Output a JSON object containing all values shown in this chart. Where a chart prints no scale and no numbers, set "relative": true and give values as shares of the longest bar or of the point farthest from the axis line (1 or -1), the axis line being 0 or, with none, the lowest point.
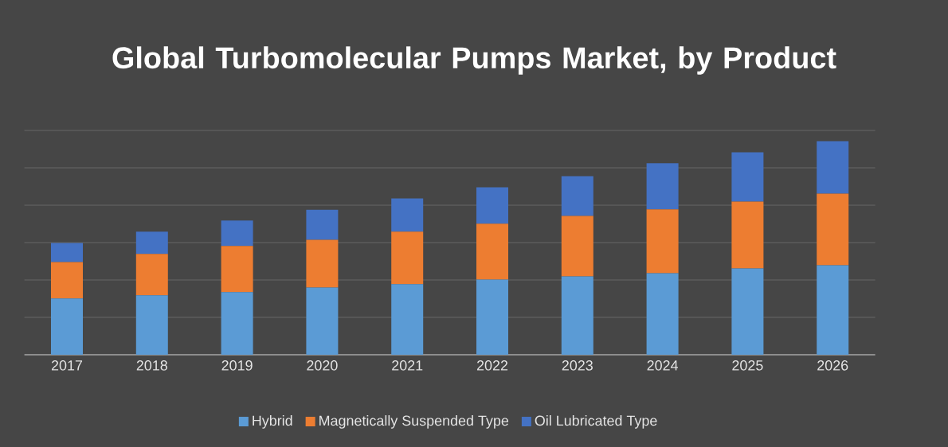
{
  "chart_data": {
    "type": "bar",
    "title": "Global Turbomolecular Pumps Market, by Product",
    "stacked": true,
    "relative": true,
    "grid": "y",
    "legend": "bottom",
    "categories": [
      "2017",
      "2018",
      "2019",
      "2020",
      "2021",
      "2022",
      "2023",
      "2024",
      "2025",
      "2026"
    ],
    "series": [
      {
        "name": "Hybrid",
        "color": "#5b9bd5",
        "values": [
          0.263,
          0.278,
          0.293,
          0.315,
          0.33,
          0.352,
          0.367,
          0.382,
          0.404,
          0.419
        ]
      },
      {
        "name": "Magnetically Suspended Type",
        "color": "#ed7d31",
        "values": [
          0.171,
          0.194,
          0.216,
          0.223,
          0.246,
          0.261,
          0.283,
          0.298,
          0.313,
          0.335
        ]
      },
      {
        "name": "Oil Lubricated Type",
        "color": "#4472c4",
        "values": [
          0.089,
          0.104,
          0.119,
          0.141,
          0.156,
          0.171,
          0.186,
          0.216,
          0.231,
          0.246
        ]
      }
    ]
  }
}
